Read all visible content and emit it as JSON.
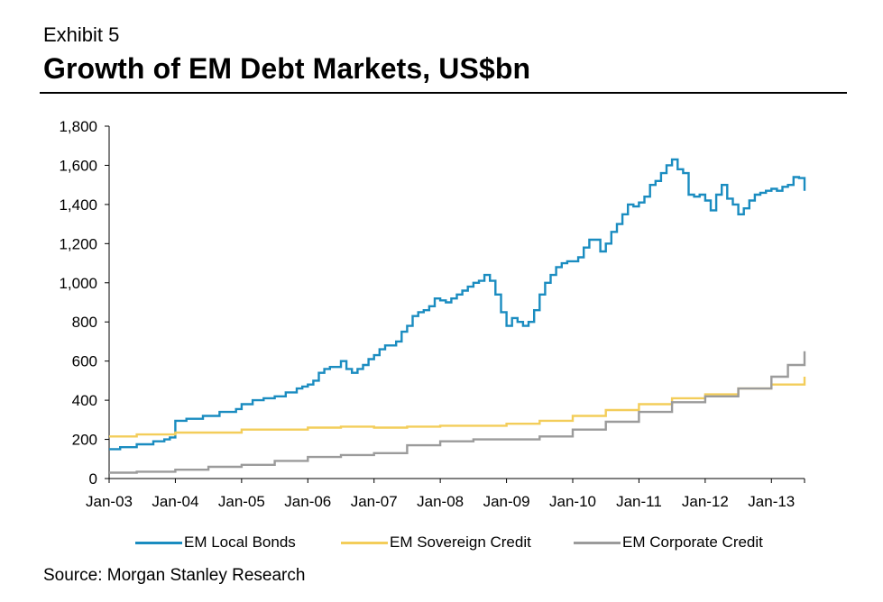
{
  "header": {
    "exhibit": "Exhibit 5",
    "title": "Growth of EM Debt Markets, US$bn"
  },
  "source": "Source: Morgan Stanley Research",
  "chart_data": {
    "type": "line",
    "x_start": "2003-01",
    "x_end": "2013-07",
    "x_tick_labels": [
      "Jan-03",
      "Jan-04",
      "Jan-05",
      "Jan-06",
      "Jan-07",
      "Jan-08",
      "Jan-09",
      "Jan-10",
      "Jan-11",
      "Jan-12",
      "Jan-13"
    ],
    "y_tick_labels": [
      "0",
      "200",
      "400",
      "600",
      "800",
      "1,000",
      "1,200",
      "1,400",
      "1,600",
      "1,800"
    ],
    "ylim": [
      0,
      1800
    ],
    "grid": false,
    "legend_position": "bottom",
    "series": [
      {
        "name": "EM Local Bonds",
        "color": "#1a8cc0",
        "points": [
          [
            "2003-01",
            150
          ],
          [
            "2003-03",
            160
          ],
          [
            "2003-06",
            175
          ],
          [
            "2003-09",
            190
          ],
          [
            "2003-11",
            200
          ],
          [
            "2003-12",
            210
          ],
          [
            "2004-01",
            220
          ],
          [
            "2004-01",
            295
          ],
          [
            "2004-03",
            305
          ],
          [
            "2004-06",
            320
          ],
          [
            "2004-09",
            340
          ],
          [
            "2004-12",
            355
          ],
          [
            "2005-01",
            380
          ],
          [
            "2005-03",
            400
          ],
          [
            "2005-05",
            410
          ],
          [
            "2005-07",
            420
          ],
          [
            "2005-09",
            440
          ],
          [
            "2005-11",
            460
          ],
          [
            "2005-12",
            470
          ],
          [
            "2006-01",
            480
          ],
          [
            "2006-02",
            500
          ],
          [
            "2006-03",
            540
          ],
          [
            "2006-04",
            560
          ],
          [
            "2006-05",
            570
          ],
          [
            "2006-06",
            570
          ],
          [
            "2006-07",
            600
          ],
          [
            "2006-08",
            560
          ],
          [
            "2006-09",
            540
          ],
          [
            "2006-10",
            560
          ],
          [
            "2006-11",
            580
          ],
          [
            "2006-12",
            610
          ],
          [
            "2007-01",
            630
          ],
          [
            "2007-02",
            660
          ],
          [
            "2007-03",
            680
          ],
          [
            "2007-05",
            700
          ],
          [
            "2007-06",
            750
          ],
          [
            "2007-07",
            780
          ],
          [
            "2007-08",
            830
          ],
          [
            "2007-09",
            850
          ],
          [
            "2007-10",
            860
          ],
          [
            "2007-11",
            880
          ],
          [
            "2007-12",
            920
          ],
          [
            "2008-01",
            910
          ],
          [
            "2008-02",
            900
          ],
          [
            "2008-03",
            920
          ],
          [
            "2008-04",
            940
          ],
          [
            "2008-05",
            960
          ],
          [
            "2008-06",
            980
          ],
          [
            "2008-07",
            1000
          ],
          [
            "2008-08",
            1010
          ],
          [
            "2008-09",
            1040
          ],
          [
            "2008-10",
            1010
          ],
          [
            "2008-11",
            940
          ],
          [
            "2008-12",
            850
          ],
          [
            "2009-01",
            780
          ],
          [
            "2009-02",
            820
          ],
          [
            "2009-03",
            800
          ],
          [
            "2009-04",
            780
          ],
          [
            "2009-05",
            800
          ],
          [
            "2009-06",
            860
          ],
          [
            "2009-07",
            940
          ],
          [
            "2009-08",
            1000
          ],
          [
            "2009-09",
            1040
          ],
          [
            "2009-10",
            1080
          ],
          [
            "2009-11",
            1100
          ],
          [
            "2009-12",
            1110
          ],
          [
            "2010-01",
            1110
          ],
          [
            "2010-02",
            1130
          ],
          [
            "2010-03",
            1180
          ],
          [
            "2010-04",
            1220
          ],
          [
            "2010-05",
            1220
          ],
          [
            "2010-06",
            1160
          ],
          [
            "2010-07",
            1200
          ],
          [
            "2010-08",
            1260
          ],
          [
            "2010-09",
            1300
          ],
          [
            "2010-10",
            1350
          ],
          [
            "2010-11",
            1400
          ],
          [
            "2010-12",
            1390
          ],
          [
            "2011-01",
            1410
          ],
          [
            "2011-02",
            1440
          ],
          [
            "2011-03",
            1500
          ],
          [
            "2011-04",
            1520
          ],
          [
            "2011-05",
            1560
          ],
          [
            "2011-06",
            1600
          ],
          [
            "2011-07",
            1630
          ],
          [
            "2011-08",
            1580
          ],
          [
            "2011-09",
            1560
          ],
          [
            "2011-10",
            1450
          ],
          [
            "2011-11",
            1440
          ],
          [
            "2011-12",
            1450
          ],
          [
            "2012-01",
            1420
          ],
          [
            "2012-02",
            1370
          ],
          [
            "2012-03",
            1450
          ],
          [
            "2012-04",
            1500
          ],
          [
            "2012-05",
            1430
          ],
          [
            "2012-06",
            1400
          ],
          [
            "2012-07",
            1350
          ],
          [
            "2012-08",
            1380
          ],
          [
            "2012-09",
            1420
          ],
          [
            "2012-10",
            1450
          ],
          [
            "2012-11",
            1460
          ],
          [
            "2012-12",
            1470
          ],
          [
            "2013-01",
            1480
          ],
          [
            "2013-02",
            1470
          ],
          [
            "2013-03",
            1490
          ],
          [
            "2013-04",
            1500
          ],
          [
            "2013-05",
            1540
          ],
          [
            "2013-06",
            1535
          ],
          [
            "2013-07",
            1470
          ]
        ]
      },
      {
        "name": "EM Sovereign Credit",
        "color": "#f3cd5a",
        "points": [
          [
            "2003-01",
            215
          ],
          [
            "2003-06",
            225
          ],
          [
            "2004-01",
            235
          ],
          [
            "2005-01",
            250
          ],
          [
            "2006-01",
            260
          ],
          [
            "2006-07",
            265
          ],
          [
            "2007-01",
            260
          ],
          [
            "2007-07",
            265
          ],
          [
            "2008-01",
            270
          ],
          [
            "2008-07",
            270
          ],
          [
            "2009-01",
            280
          ],
          [
            "2009-07",
            295
          ],
          [
            "2010-01",
            320
          ],
          [
            "2010-07",
            350
          ],
          [
            "2011-01",
            380
          ],
          [
            "2011-07",
            410
          ],
          [
            "2012-01",
            430
          ],
          [
            "2012-07",
            460
          ],
          [
            "2013-01",
            480
          ],
          [
            "2013-07",
            520
          ]
        ]
      },
      {
        "name": "EM Corporate Credit",
        "color": "#9b9b9b",
        "points": [
          [
            "2003-01",
            30
          ],
          [
            "2003-06",
            35
          ],
          [
            "2004-01",
            45
          ],
          [
            "2004-07",
            60
          ],
          [
            "2005-01",
            70
          ],
          [
            "2005-07",
            90
          ],
          [
            "2006-01",
            110
          ],
          [
            "2006-07",
            120
          ],
          [
            "2007-01",
            130
          ],
          [
            "2007-07",
            170
          ],
          [
            "2008-01",
            190
          ],
          [
            "2008-07",
            200
          ],
          [
            "2009-01",
            200
          ],
          [
            "2009-07",
            215
          ],
          [
            "2010-01",
            250
          ],
          [
            "2010-07",
            290
          ],
          [
            "2011-01",
            340
          ],
          [
            "2011-07",
            390
          ],
          [
            "2012-01",
            420
          ],
          [
            "2012-07",
            460
          ],
          [
            "2013-01",
            520
          ],
          [
            "2013-04",
            580
          ],
          [
            "2013-07",
            650
          ]
        ]
      }
    ]
  }
}
